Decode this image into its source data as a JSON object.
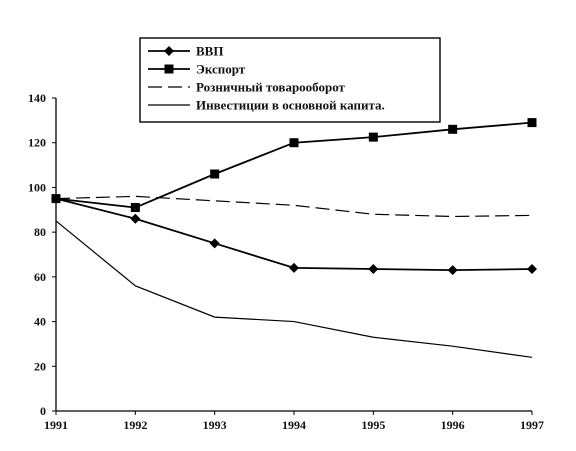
{
  "chart_data": {
    "type": "line",
    "x": [
      1991,
      1992,
      1993,
      1994,
      1995,
      1996,
      1997
    ],
    "xlim": [
      1991,
      1997
    ],
    "ylim": [
      0,
      140
    ],
    "y_ticks": [
      0,
      20,
      40,
      60,
      80,
      100,
      120,
      140
    ],
    "grid": false,
    "legend_position": "top",
    "series": [
      {
        "name": "ВВП",
        "values": [
          95,
          86,
          75,
          64,
          63.5,
          63,
          63.5
        ],
        "marker": "diamond",
        "dash": "solid",
        "width": 1.8
      },
      {
        "name": "Экспорт",
        "values": [
          95,
          91,
          106,
          120,
          122.5,
          126,
          129
        ],
        "marker": "square",
        "dash": "solid",
        "width": 1.8
      },
      {
        "name": "Розничный товарооборот",
        "values": [
          95,
          96,
          94,
          92,
          88,
          87,
          87.5
        ],
        "marker": "none",
        "dash": "longdash",
        "width": 1.2
      },
      {
        "name": "Инвестиции в основной капитал",
        "display_name": "Инвестиции в основной капита.",
        "values": [
          85,
          56,
          42,
          40,
          33,
          29,
          24
        ],
        "marker": "none",
        "dash": "solid",
        "width": 1.2
      }
    ]
  }
}
